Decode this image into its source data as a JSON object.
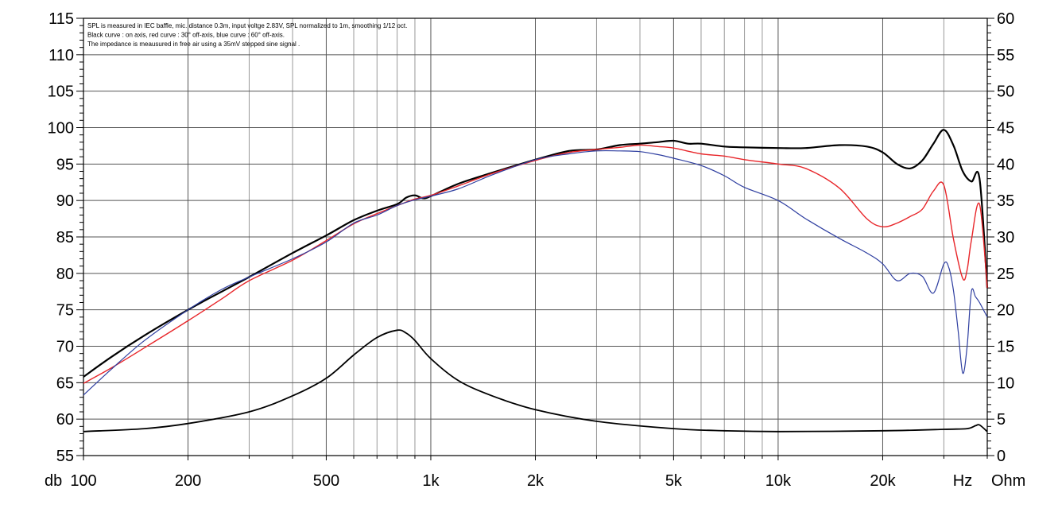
{
  "chart_data": {
    "type": "line",
    "title": "",
    "notes": [
      "SPL is measured in IEC baffle, mic. distance 0.3m, input voltge 2.83V, SPL normalized to 1m, smoothing 1/12 oct.",
      "Black curve : on axis, red curve : 30° off-axis, blue curve : 60° off-axis.",
      "The impedance is meausured in free air using a 35mV stepped sine signal ."
    ],
    "x_scale": "log",
    "xlim": [
      100,
      40000
    ],
    "ylim_left": [
      55,
      115
    ],
    "ylim_right": [
      0,
      60
    ],
    "left_unit_label": "db",
    "right_unit_label": "Ohm",
    "x_unit_label": "Hz",
    "x_tick_labels": [
      {
        "v": 100,
        "t": "100"
      },
      {
        "v": 200,
        "t": "200"
      },
      {
        "v": 500,
        "t": "500"
      },
      {
        "v": 1000,
        "t": "1k"
      },
      {
        "v": 2000,
        "t": "2k"
      },
      {
        "v": 5000,
        "t": "5k"
      },
      {
        "v": 10000,
        "t": "10k"
      },
      {
        "v": 20000,
        "t": "20k"
      }
    ],
    "left_ticks": [
      55,
      60,
      65,
      70,
      75,
      80,
      85,
      90,
      95,
      100,
      105,
      110,
      115
    ],
    "right_ticks": [
      0,
      5,
      10,
      15,
      20,
      25,
      30,
      35,
      40,
      45,
      50,
      55,
      60
    ],
    "grid": true,
    "series": [
      {
        "axis": "left",
        "color": "#000000",
        "width": 2.2,
        "x": [
          100,
          120,
          150,
          200,
          250,
          300,
          400,
          500,
          600,
          700,
          800,
          850,
          900,
          950,
          1000,
          1200,
          1500,
          2000,
          2500,
          3000,
          3500,
          4000,
          4500,
          5000,
          5500,
          6000,
          7000,
          8000,
          10000,
          12000,
          15000,
          18000,
          20000,
          22000,
          24000,
          26000,
          28000,
          30000,
          32000,
          34000,
          36000,
          38000,
          40000
        ],
        "values": [
          65.8,
          68.5,
          71.5,
          75.0,
          77.5,
          79.5,
          82.8,
          85.2,
          87.3,
          88.6,
          89.5,
          90.4,
          90.7,
          90.3,
          90.6,
          92.3,
          93.8,
          95.6,
          96.8,
          97.0,
          97.6,
          97.8,
          98.0,
          98.2,
          97.8,
          97.8,
          97.4,
          97.3,
          97.2,
          97.2,
          97.6,
          97.4,
          96.6,
          95.0,
          94.4,
          95.5,
          97.8,
          99.7,
          97.5,
          94.0,
          92.6,
          93.0,
          78.0
        ]
      },
      {
        "axis": "left",
        "color": "#e8262a",
        "width": 1.4,
        "x": [
          100,
          120,
          150,
          200,
          250,
          300,
          400,
          500,
          600,
          700,
          800,
          900,
          1000,
          1200,
          1500,
          2000,
          2500,
          3000,
          3500,
          4000,
          4500,
          5000,
          6000,
          7000,
          8000,
          10000,
          12000,
          15000,
          18000,
          20000,
          22000,
          24000,
          26000,
          28000,
          30000,
          32000,
          34000,
          35000,
          36000,
          38000,
          40000
        ],
        "values": [
          64.9,
          67.0,
          69.8,
          73.5,
          76.5,
          79.0,
          81.8,
          84.5,
          86.8,
          88.2,
          89.3,
          90.2,
          90.7,
          92.0,
          93.7,
          95.5,
          96.6,
          97.0,
          97.3,
          97.6,
          97.4,
          97.2,
          96.4,
          96.1,
          95.6,
          95.0,
          94.4,
          91.7,
          87.5,
          86.4,
          86.9,
          87.8,
          88.8,
          91.3,
          92.1,
          84.6,
          79.3,
          80.5,
          84.5,
          89.5,
          78.0
        ]
      },
      {
        "axis": "left",
        "color": "#2e3ea0",
        "width": 1.2,
        "x": [
          100,
          120,
          150,
          200,
          250,
          300,
          400,
          500,
          600,
          700,
          800,
          900,
          1000,
          1200,
          1500,
          2000,
          2500,
          3000,
          3500,
          4000,
          4500,
          5000,
          6000,
          7000,
          8000,
          10000,
          12000,
          15000,
          18000,
          20000,
          22000,
          24000,
          26000,
          28000,
          30000,
          31000,
          32000,
          33000,
          34000,
          35000,
          36000,
          37000,
          38000,
          40000
        ],
        "values": [
          63.3,
          66.8,
          70.8,
          75.0,
          77.8,
          79.5,
          82.0,
          84.3,
          86.9,
          88.0,
          89.3,
          90.1,
          90.6,
          91.6,
          93.5,
          95.6,
          96.4,
          96.8,
          96.8,
          96.7,
          96.3,
          95.8,
          94.8,
          93.4,
          91.8,
          90.0,
          87.5,
          84.8,
          82.8,
          81.3,
          79.0,
          80.0,
          79.6,
          77.3,
          81.3,
          80.8,
          77.5,
          72.0,
          66.3,
          70.0,
          77.5,
          76.8,
          76.0,
          74.0
        ]
      },
      {
        "axis": "right",
        "color": "#000000",
        "width": 1.8,
        "x": [
          100,
          150,
          200,
          300,
          400,
          500,
          600,
          700,
          800,
          850,
          900,
          1000,
          1200,
          1500,
          2000,
          3000,
          5000,
          7000,
          10000,
          20000,
          30000,
          35000,
          37000,
          38000,
          40000
        ],
        "values": [
          3.3,
          3.7,
          4.4,
          6.0,
          8.2,
          10.6,
          13.8,
          16.2,
          17.2,
          16.8,
          15.8,
          13.3,
          10.3,
          8.2,
          6.3,
          4.7,
          3.7,
          3.4,
          3.3,
          3.4,
          3.6,
          3.7,
          4.1,
          4.2,
          3.3
        ]
      }
    ]
  }
}
